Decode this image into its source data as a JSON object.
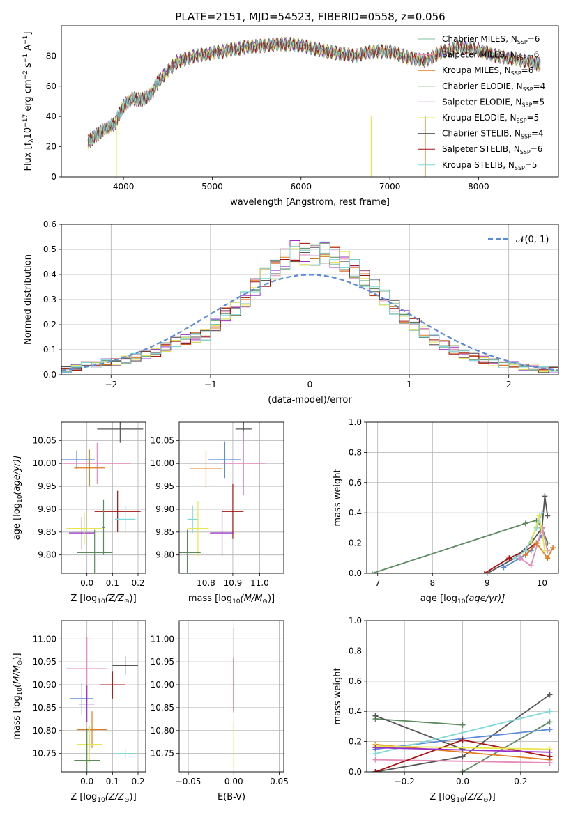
{
  "title": "PLATE=2151, MJD=54523, FIBERID=0558, z=0.056",
  "colors": {
    "Chabrier MILES": "#7fbfa0",
    "Salpeter MILES": "#e58ab9",
    "Kroupa MILES": "#e07b1f",
    "Chabrier ELODIE": "#5a8a5e",
    "Salpeter ELODIE": "#9b30c9",
    "Kroupa ELODIE": "#e6e650",
    "Chabrier STELIB": "#555555",
    "Salpeter STELIB": "#a81010",
    "Kroupa STELIB": "#7fd8d8",
    "extra_blue": "#5b8ad8",
    "gaussian": "#5b8ad8"
  },
  "legend_spectrum": [
    {
      "model": "Chabrier MILES",
      "n": "6"
    },
    {
      "model": "Salpeter MILES",
      "n": "6"
    },
    {
      "model": "Kroupa MILES",
      "n": "6"
    },
    {
      "model": "Chabrier ELODIE",
      "n": "4"
    },
    {
      "model": "Salpeter ELODIE",
      "n": "5"
    },
    {
      "model": "Kroupa ELODIE",
      "n": "5"
    },
    {
      "model": "Chabrier STELIB",
      "n": "4"
    },
    {
      "model": "Salpeter STELIB",
      "n": "6"
    },
    {
      "model": "Kroupa STELIB",
      "n": "5"
    }
  ],
  "chart_data": [
    {
      "type": "line",
      "xlabel": "wavelength [Angstrom, rest frame]",
      "ylabel": "Flux [f",
      "xlim": [
        3300,
        8900
      ],
      "ylim": [
        0,
        100
      ],
      "xticks": [
        4000,
        5000,
        6000,
        7000,
        8000
      ],
      "yticks": [
        0,
        20,
        40,
        60,
        80
      ],
      "x": [
        3600,
        3700,
        3800,
        3900,
        4000,
        4100,
        4200,
        4300,
        4400,
        4600,
        4800,
        5000,
        5200,
        5400,
        5600,
        5800,
        6000,
        6200,
        6400,
        6600,
        6800,
        7000,
        7200,
        7400,
        7600,
        7800,
        8000,
        8200,
        8400,
        8600,
        8700
      ],
      "y": [
        23,
        28,
        32,
        35,
        47,
        52,
        51,
        54,
        64,
        76,
        80,
        82,
        84,
        86,
        87,
        88,
        87,
        84,
        82,
        80,
        83,
        83,
        79,
        77,
        83,
        86,
        84,
        80,
        78,
        76,
        74
      ]
    },
    {
      "type": "bar",
      "xlabel": "(data-model)/error",
      "ylabel": "Normed distribution",
      "xlim": [
        -2.5,
        2.5
      ],
      "ylim": [
        0,
        0.6
      ],
      "xticks": [
        -2,
        -1,
        0,
        1,
        2
      ],
      "yticks": [
        0.0,
        0.1,
        0.2,
        0.3,
        0.4,
        0.5,
        0.6
      ],
      "legend": "𝒩(0, 1)",
      "bin_width": 0.1,
      "x_start": -2.5,
      "values": [
        0.02,
        0.03,
        0.04,
        0.04,
        0.05,
        0.05,
        0.06,
        0.07,
        0.08,
        0.09,
        0.11,
        0.13,
        0.14,
        0.15,
        0.16,
        0.2,
        0.24,
        0.26,
        0.3,
        0.35,
        0.39,
        0.42,
        0.46,
        0.49,
        0.48,
        0.48,
        0.49,
        0.47,
        0.45,
        0.42,
        0.38,
        0.35,
        0.31,
        0.27,
        0.23,
        0.2,
        0.17,
        0.14,
        0.12,
        0.1,
        0.08,
        0.07,
        0.06,
        0.05,
        0.04,
        0.04,
        0.03,
        0.03,
        0.02,
        0.02
      ]
    },
    {
      "type": "scatter",
      "xlabel": "Z [log",
      "ylabel": "age  [log",
      "xlim": [
        -0.1,
        0.23
      ],
      "ylim": [
        9.76,
        10.09
      ],
      "xticks": [
        0.0,
        0.1,
        0.2
      ],
      "yticks": [
        9.8,
        9.85,
        9.9,
        9.95,
        10.0,
        10.05
      ],
      "points": [
        {
          "model": "extra_blue",
          "x": -0.04,
          "y": 10.008,
          "xe": 0.07,
          "ye": 0.02
        },
        {
          "model": "Salpeter MILES",
          "x": 0.04,
          "y": 10.0,
          "xe": 0.13,
          "ye": 0.045
        },
        {
          "model": "Kroupa MILES",
          "x": 0.01,
          "y": 9.99,
          "xe": 0.06,
          "ye": 0.04
        },
        {
          "model": "Chabrier STELIB",
          "x": 0.13,
          "y": 10.075,
          "xe": 0.09,
          "ye": 0.03
        },
        {
          "model": "Salpeter STELIB",
          "x": 0.12,
          "y": 9.895,
          "xe": 0.09,
          "ye": 0.045
        },
        {
          "model": "Kroupa STELIB",
          "x": 0.15,
          "y": 9.878,
          "xe": 0.04,
          "ye": 0.03
        },
        {
          "model": "Salpeter ELODIE",
          "x": -0.02,
          "y": 9.848,
          "xe": 0.05,
          "ye": 0.035
        },
        {
          "model": "Kroupa ELODIE",
          "x": -0.01,
          "y": 9.858,
          "xe": 0.07,
          "ye": 0.035
        },
        {
          "model": "Chabrier ELODIE",
          "x": 0.03,
          "y": 9.805,
          "xe": 0.07,
          "ye": 0.05
        },
        {
          "model": "Chabrier ELODIE",
          "x": 0.065,
          "y": 9.86,
          "xe": 0.005,
          "ye": 0.06
        }
      ]
    },
    {
      "type": "scatter",
      "xlabel": "mass [log",
      "ylabel": "",
      "xlim": [
        10.7,
        11.09
      ],
      "ylim": [
        9.76,
        10.09
      ],
      "xticks": [
        10.8,
        10.9,
        11.0
      ],
      "yticks": [
        9.8,
        9.85,
        9.9,
        9.95,
        10.0,
        10.05
      ],
      "points": [
        {
          "model": "Chabrier STELIB",
          "x": 10.94,
          "y": 10.075,
          "xe": 0.03,
          "ye": 0.03
        },
        {
          "model": "Salpeter MILES",
          "x": 10.94,
          "y": 10.0,
          "xe": 0.08,
          "ye": 0.07
        },
        {
          "model": "extra_blue",
          "x": 10.87,
          "y": 10.008,
          "xe": 0.06,
          "ye": 0.04
        },
        {
          "model": "Kroupa MILES",
          "x": 10.8,
          "y": 9.988,
          "xe": 0.06,
          "ye": 0.04
        },
        {
          "model": "Salpeter STELIB",
          "x": 10.9,
          "y": 9.895,
          "xe": 0.04,
          "ye": 0.06
        },
        {
          "model": "Kroupa STELIB",
          "x": 10.75,
          "y": 9.878,
          "xe": 0.02,
          "ye": 0.03
        },
        {
          "model": "Kroupa ELODIE",
          "x": 10.77,
          "y": 9.858,
          "xe": 0.04,
          "ye": 0.06
        },
        {
          "model": "Salpeter ELODIE",
          "x": 10.86,
          "y": 9.848,
          "xe": 0.045,
          "ye": 0.05
        },
        {
          "model": "Chabrier ELODIE",
          "x": 10.73,
          "y": 9.805,
          "xe": 0.05,
          "ye": 0.05
        }
      ]
    },
    {
      "type": "line",
      "xlabel": "age  [log",
      "ylabel": "mass weight",
      "xlim": [
        6.8,
        10.3
      ],
      "ylim": [
        0,
        1
      ],
      "xticks": [
        7,
        8,
        9,
        10
      ],
      "yticks": [
        0.0,
        0.2,
        0.4,
        0.6,
        0.8,
        1.0
      ],
      "series": [
        {
          "model": "Chabrier ELODIE",
          "x": [
            6.9,
            9.7,
            9.9,
            10.0,
            10.1
          ],
          "y": [
            0.0,
            0.33,
            0.35,
            0.3,
            0.2
          ]
        },
        {
          "model": "Chabrier STELIB",
          "x": [
            9.0,
            9.5,
            9.8,
            10.0,
            10.05,
            10.1
          ],
          "y": [
            0.0,
            0.1,
            0.2,
            0.3,
            0.51,
            0.38
          ]
        },
        {
          "model": "Salpeter STELIB",
          "x": [
            8.95,
            9.4,
            9.7,
            9.9,
            10.0
          ],
          "y": [
            0.0,
            0.1,
            0.15,
            0.2,
            0.25
          ]
        },
        {
          "model": "extra_blue",
          "x": [
            9.3,
            9.6,
            9.8,
            10.0
          ],
          "y": [
            0.04,
            0.1,
            0.15,
            0.25
          ]
        },
        {
          "model": "Kroupa STELIB",
          "x": [
            9.5,
            9.7,
            9.9,
            10.0
          ],
          "y": [
            0.1,
            0.15,
            0.3,
            0.4
          ]
        },
        {
          "model": "Salpeter MILES",
          "x": [
            9.6,
            9.8,
            10.0,
            10.1
          ],
          "y": [
            0.1,
            0.05,
            0.3,
            0.15
          ]
        },
        {
          "model": "Kroupa MILES",
          "x": [
            9.7,
            9.9,
            10.1,
            10.2
          ],
          "y": [
            0.12,
            0.2,
            0.1,
            0.17
          ]
        },
        {
          "model": "Kroupa ELODIE",
          "x": [
            9.8,
            9.95,
            10.05
          ],
          "y": [
            0.2,
            0.38,
            0.15
          ]
        }
      ]
    },
    {
      "type": "scatter",
      "xlabel": "Z [log",
      "ylabel": "mass [log",
      "xlim": [
        -0.1,
        0.23
      ],
      "ylim": [
        10.71,
        11.04
      ],
      "xticks": [
        0.0,
        0.1,
        0.2
      ],
      "yticks": [
        10.75,
        10.8,
        10.85,
        10.9,
        10.95,
        11.0
      ],
      "points": [
        {
          "model": "Chabrier STELIB",
          "x": 0.15,
          "y": 10.942,
          "xe": 0.05,
          "ye": 0.02
        },
        {
          "model": "Salpeter MILES",
          "x": 0.0,
          "y": 10.935,
          "xe": 0.08,
          "ye": 0.07
        },
        {
          "model": "Salpeter STELIB",
          "x": 0.1,
          "y": 10.9,
          "xe": 0.05,
          "ye": 0.03
        },
        {
          "model": "extra_blue",
          "x": -0.02,
          "y": 10.87,
          "xe": 0.045,
          "ye": 0.035
        },
        {
          "model": "Salpeter ELODIE",
          "x": 0.0,
          "y": 10.858,
          "xe": 0.03,
          "ye": 0.04
        },
        {
          "model": "Kroupa MILES",
          "x": 0.02,
          "y": 10.802,
          "xe": 0.06,
          "ye": 0.04
        },
        {
          "model": "Kroupa ELODIE",
          "x": 0.01,
          "y": 10.77,
          "xe": 0.05,
          "ye": 0.04
        },
        {
          "model": "Chabrier ELODIE",
          "x": 0.0,
          "y": 10.735,
          "xe": 0.05,
          "ye": 0.07
        },
        {
          "model": "Kroupa STELIB",
          "x": 0.15,
          "y": 10.75,
          "xe": 0.04,
          "ye": 0.01
        }
      ]
    },
    {
      "type": "scatter",
      "xlabel": "E(B-V)",
      "ylabel": "",
      "xlim": [
        -0.06,
        0.055
      ],
      "ylim": [
        10.71,
        11.04
      ],
      "xticks": [
        -0.05,
        0.0,
        0.05
      ],
      "yticks": [
        10.75,
        10.8,
        10.85,
        10.9,
        10.95,
        11.0
      ],
      "points": [
        {
          "model": "Salpeter MILES",
          "x": 0.0,
          "y": 10.935,
          "xe": 0.0005,
          "ye": 0.09
        },
        {
          "model": "Salpeter STELIB",
          "x": 0.0,
          "y": 10.9,
          "xe": 0.0005,
          "ye": 0.06
        },
        {
          "model": "Kroupa ELODIE",
          "x": 0.0,
          "y": 10.77,
          "xe": 0.0005,
          "ye": 0.05
        }
      ]
    },
    {
      "type": "line",
      "xlabel": "Z [log",
      "ylabel": "mass weight",
      "xlim": [
        -0.33,
        0.33
      ],
      "ylim": [
        0,
        1
      ],
      "xticks": [
        -0.2,
        0.0,
        0.2
      ],
      "yticks": [
        0.0,
        0.2,
        0.4,
        0.6,
        0.8,
        1.0
      ],
      "series": [
        {
          "model": "Chabrier ELODIE",
          "x": [
            -0.3,
            0.0
          ],
          "y": [
            0.35,
            0.31
          ]
        },
        {
          "model": "Chabrier ELODIE",
          "x": [
            0.0,
            0.3
          ],
          "y": [
            0.0,
            0.33
          ]
        },
        {
          "model": "Chabrier STELIB",
          "x": [
            -0.3,
            0.0,
            0.3
          ],
          "y": [
            0.0,
            0.1,
            0.51
          ]
        },
        {
          "model": "Chabrier STELIB",
          "x": [
            -0.3,
            0.0
          ],
          "y": [
            0.37,
            0.15
          ]
        },
        {
          "model": "extra_blue",
          "x": [
            -0.3,
            0.0,
            0.3
          ],
          "y": [
            0.15,
            0.22,
            0.28
          ]
        },
        {
          "model": "Kroupa STELIB",
          "x": [
            -0.3,
            0.3
          ],
          "y": [
            0.12,
            0.4
          ]
        },
        {
          "model": "Kroupa MILES",
          "x": [
            -0.3,
            0.3
          ],
          "y": [
            0.18,
            0.08
          ]
        },
        {
          "model": "Salpeter MILES",
          "x": [
            -0.3,
            0.3
          ],
          "y": [
            0.08,
            0.06
          ]
        },
        {
          "model": "Salpeter STELIB",
          "x": [
            -0.3,
            0.0,
            0.3
          ],
          "y": [
            0.0,
            0.21,
            0.1
          ]
        },
        {
          "model": "Kroupa ELODIE",
          "x": [
            -0.3,
            0.3
          ],
          "y": [
            0.17,
            0.15
          ]
        },
        {
          "model": "Salpeter ELODIE",
          "x": [
            -0.3,
            0.3
          ],
          "y": [
            0.16,
            0.13
          ]
        }
      ]
    }
  ]
}
